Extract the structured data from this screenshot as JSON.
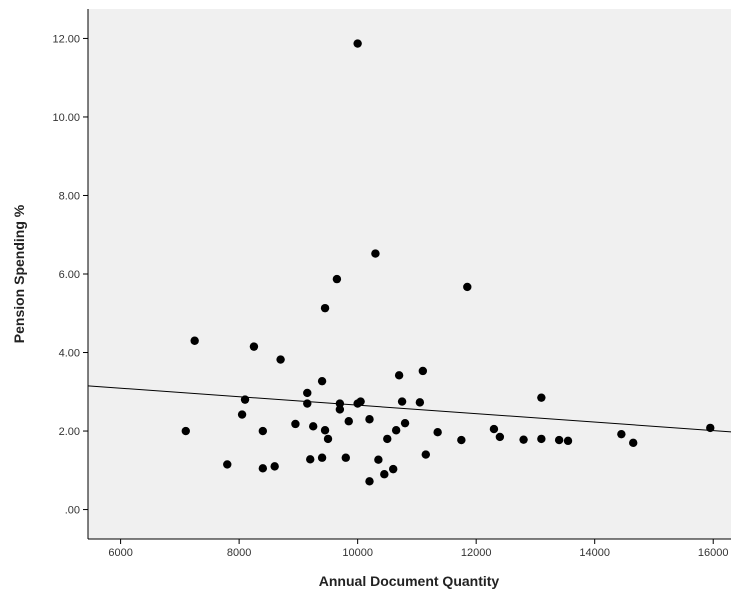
{
  "chart_data": {
    "type": "scatter",
    "xlabel": "Annual Document Quantity",
    "ylabel": "Pension Spending %",
    "xlim": [
      5450,
      16300
    ],
    "ylim": [
      -0.75,
      12.75
    ],
    "xticks": [
      6000,
      8000,
      10000,
      12000,
      14000,
      16000
    ],
    "xtick_labels": [
      "6000",
      "8000",
      "10000",
      "12000",
      "14000",
      "16000"
    ],
    "yticks": [
      0,
      2,
      4,
      6,
      8,
      10,
      12
    ],
    "ytick_labels": [
      ".00",
      "2.00",
      "4.00",
      "6.00",
      "8.00",
      "10.00",
      "12.00"
    ],
    "grid": false,
    "plot_background": "#f0f0f0",
    "marker_color": "#000000",
    "fit_line": {
      "x": [
        5450,
        16300
      ],
      "y": [
        3.15,
        1.98
      ]
    },
    "points": {
      "x": [
        7100,
        7250,
        7800,
        8050,
        8100,
        8250,
        8400,
        8400,
        8600,
        8700,
        8950,
        9150,
        9150,
        9200,
        9250,
        9400,
        9400,
        9450,
        9450,
        9500,
        9650,
        9700,
        9700,
        9800,
        9850,
        10000,
        10000,
        10050,
        10200,
        10200,
        10300,
        10350,
        10450,
        10500,
        10600,
        10650,
        10700,
        10750,
        10800,
        11050,
        11100,
        11150,
        11350,
        11750,
        11850,
        12300,
        12400,
        12800,
        13100,
        13100,
        13400,
        13550,
        14450,
        14650,
        15950
      ],
      "y": [
        2.0,
        4.3,
        1.15,
        2.42,
        2.8,
        4.15,
        2.0,
        1.05,
        1.1,
        3.82,
        2.18,
        2.97,
        2.7,
        1.28,
        2.12,
        3.27,
        1.32,
        2.02,
        5.13,
        1.8,
        5.87,
        2.55,
        2.7,
        1.32,
        2.25,
        2.7,
        11.87,
        2.75,
        0.72,
        2.3,
        6.52,
        1.27,
        0.9,
        1.8,
        1.03,
        2.02,
        3.42,
        2.75,
        2.2,
        2.73,
        3.53,
        1.4,
        1.97,
        1.77,
        5.67,
        2.05,
        1.85,
        1.78,
        2.85,
        1.8,
        1.77,
        1.75,
        1.92,
        1.7,
        2.08
      ]
    }
  }
}
